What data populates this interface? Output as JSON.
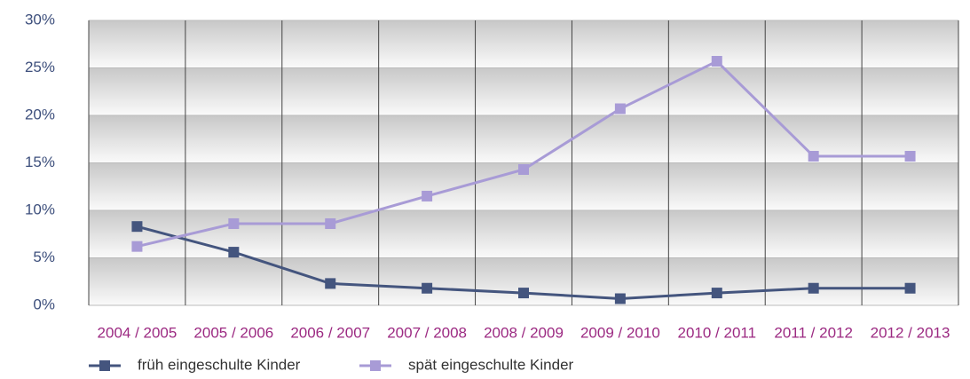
{
  "chart_data": {
    "type": "line",
    "categories": [
      "2004 / 2005",
      "2005 / 2006",
      "2006 / 2007",
      "2007 / 2008",
      "2008 / 2009",
      "2009 / 2010",
      "2010 / 2011",
      "2011 / 2012",
      "2012 / 2013"
    ],
    "series": [
      {
        "name": "früh eingeschulte Kinder",
        "color": "#44557e",
        "values": [
          8.3,
          5.6,
          2.3,
          1.8,
          1.3,
          0.7,
          1.3,
          1.8,
          1.8
        ]
      },
      {
        "name": "spät eingeschulte Kinder",
        "color": "#a89bd6",
        "values": [
          6.2,
          8.6,
          8.6,
          11.5,
          14.3,
          20.7,
          25.7,
          15.7,
          15.7
        ]
      }
    ],
    "ylim": [
      0,
      30
    ],
    "yticks": [
      {
        "value": 0,
        "label": "0%"
      },
      {
        "value": 5,
        "label": "5%"
      },
      {
        "value": 10,
        "label": "10%"
      },
      {
        "value": 15,
        "label": "15%"
      },
      {
        "value": 20,
        "label": "20%"
      },
      {
        "value": 25,
        "label": "25%"
      },
      {
        "value": 30,
        "label": "30%"
      }
    ],
    "grid": true,
    "legend": "bottom"
  }
}
